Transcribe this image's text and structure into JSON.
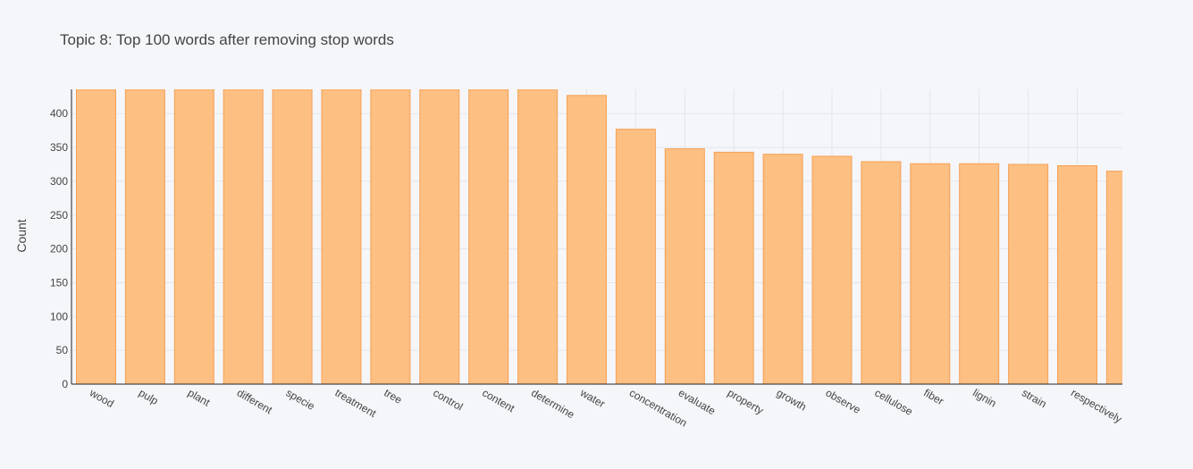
{
  "chart_data": {
    "type": "bar",
    "title": "Topic 8: Top 100 words after removing stop words",
    "xlabel": "",
    "ylabel": "Count",
    "ylim": [
      0,
      436
    ],
    "yticks": [
      0,
      50,
      100,
      150,
      200,
      250,
      300,
      350,
      400
    ],
    "grid": true,
    "bar_color": "#fdbf82",
    "bar_edge_color": "#f5a155",
    "categories": [
      "wood",
      "pulp",
      "plant",
      "different",
      "specie",
      "treatment",
      "tree",
      "control",
      "content",
      "determine",
      "water",
      "concentration",
      "evaluate",
      "property",
      "growth",
      "observe",
      "cellulose",
      "fiber",
      "lignin",
      "strain",
      "respectively",
      ""
    ],
    "values": [
      436,
      436,
      436,
      436,
      436,
      436,
      436,
      436,
      436,
      436,
      427,
      377,
      348,
      343,
      340,
      337,
      329,
      326,
      326,
      325,
      323,
      315
    ]
  }
}
